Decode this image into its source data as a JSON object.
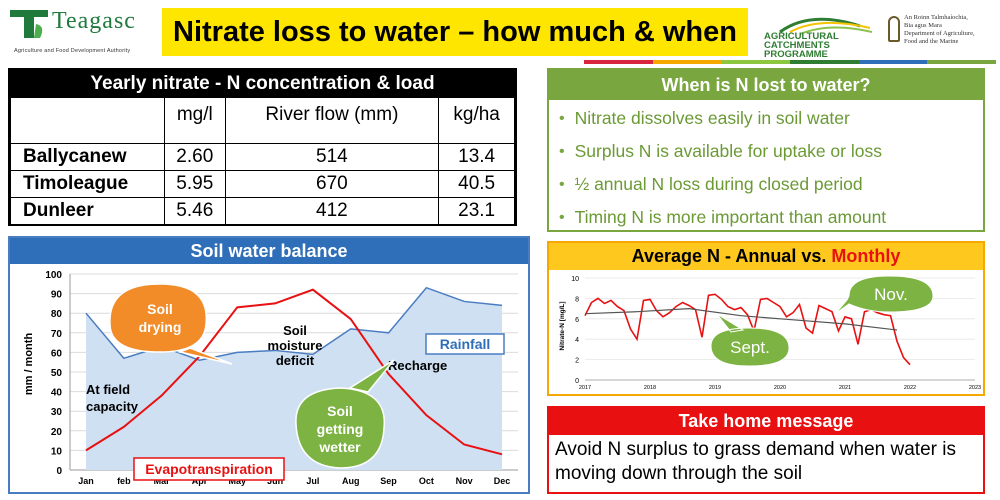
{
  "header": {
    "brand": "Teagasc",
    "brand_tagline": "Agriculture and Food Development Authority",
    "title": "Nitrate loss to water – how much & when",
    "acp_logo": "AGRICULTURAL CATCHMENTS PROGRAMME",
    "dept_logo": [
      "An Roinn Talmhaíochta,",
      "Bia agus Mara",
      "Department of Agriculture,",
      "Food and the Marine"
    ]
  },
  "nitrate_table": {
    "title": "Yearly nitrate - N concentration & load",
    "columns": [
      "",
      "mg/l",
      "River flow (mm)",
      "kg/ha"
    ],
    "rows": [
      [
        "Ballycanew",
        "2.60",
        "514",
        "13.4"
      ],
      [
        "Timoleague",
        "5.95",
        "670",
        "40.5"
      ],
      [
        "Dunleer",
        "5.46",
        "412",
        "23.1"
      ]
    ]
  },
  "when_lost": {
    "title": "When is N lost to water?",
    "bullets": [
      "Nitrate dissolves easily in soil water",
      "Surplus N is available for uptake or loss",
      "½ annual N loss during closed period",
      "Timing N is more important than amount"
    ]
  },
  "soil_water": {
    "title": "Soil water balance",
    "annotations": {
      "soil_drying": "Soil drying",
      "soil_moisture_deficit": "Soil moisture deficit",
      "at_field_capacity": "At field capacity",
      "recharge": "Recharge",
      "soil_getting_wetter": "Soil getting wetter"
    }
  },
  "average_n": {
    "title_prefix": "Average N -  Annual vs.",
    "title_highlight": "Monthly",
    "callout_nov": "Nov.",
    "callout_sept": "Sept."
  },
  "take_home": {
    "title": "Take home message",
    "body": "Avoid N surplus to grass demand when water is moving down through the soil"
  },
  "colors": {
    "title_bar": "#ffe600",
    "green": "#7aa640",
    "blue": "#2f6fba",
    "orange": "#ffc81e",
    "red": "#e81010"
  },
  "chart_data": [
    {
      "type": "line",
      "ylabel": "mm / month",
      "ylim": [
        0,
        100
      ],
      "yticks": [
        "0",
        "10",
        "20",
        "30",
        "40",
        "50",
        "60",
        "70",
        "80",
        "90",
        "100"
      ],
      "categories": [
        "Jan",
        "feb",
        "Mar",
        "Apr",
        "May",
        "Jun",
        "Jul",
        "Aug",
        "Sep",
        "Oct",
        "Nov",
        "Dec"
      ],
      "series": [
        {
          "name": "Rainfall",
          "color": "#4a7cc1",
          "values": [
            80,
            57,
            63,
            56,
            60,
            61,
            59,
            72,
            70,
            93,
            86,
            84
          ]
        },
        {
          "name": "Evapotranspiration",
          "color": "#e81010",
          "values": [
            10,
            22,
            38,
            58,
            83,
            85,
            92,
            77,
            49,
            28,
            13,
            8
          ]
        }
      ],
      "legend": "labels inside plot"
    },
    {
      "type": "line",
      "ylabel": "Nitrate-N [mg/L]",
      "ylim": [
        0,
        10
      ],
      "yticks": [
        "0",
        "2",
        "4",
        "6",
        "8",
        "10"
      ],
      "xticks": [
        "2017",
        "2018",
        "2019",
        "2020",
        "2021",
        "2022",
        "2023"
      ],
      "series": [
        {
          "name": "Monthly",
          "color": "#e81010",
          "x": [
            2017.0,
            2017.1,
            2017.2,
            2017.3,
            2017.4,
            2017.5,
            2017.6,
            2017.7,
            2017.8,
            2017.9,
            2018.0,
            2018.1,
            2018.2,
            2018.3,
            2018.4,
            2018.5,
            2018.6,
            2018.7,
            2018.8,
            2018.9,
            2019.0,
            2019.1,
            2019.2,
            2019.3,
            2019.4,
            2019.5,
            2019.6,
            2019.7,
            2019.8,
            2019.9,
            2020.0,
            2020.1,
            2020.2,
            2020.3,
            2020.4,
            2020.5,
            2020.6,
            2020.7,
            2020.8,
            2020.9,
            2021.0,
            2021.1,
            2021.2,
            2021.3,
            2021.4,
            2021.5,
            2021.6,
            2021.7,
            2021.8,
            2021.9,
            2022.0
          ],
          "values": [
            6.3,
            7.6,
            8.0,
            7.5,
            7.8,
            7.2,
            6.8,
            5.0,
            4.0,
            7.8,
            7.9,
            6.8,
            6.2,
            6.6,
            7.2,
            7.6,
            7.3,
            6.9,
            4.2,
            8.3,
            8.4,
            7.9,
            7.2,
            6.9,
            7.1,
            6.4,
            4.8,
            7.9,
            8.0,
            7.6,
            7.2,
            6.2,
            6.6,
            7.4,
            5.1,
            4.6,
            7.3,
            7.0,
            6.7,
            4.8,
            6.2,
            6.0,
            3.5,
            6.7,
            6.9,
            6.6,
            6.4,
            6.3,
            3.8,
            2.2,
            1.5
          ]
        },
        {
          "name": "Annual",
          "color": "#555555",
          "x": [
            2017.0,
            2017.8,
            2018.6,
            2019.4,
            2020.2,
            2021.0,
            2021.8
          ],
          "values": [
            6.5,
            6.7,
            7.0,
            6.3,
            5.9,
            5.5,
            4.9
          ]
        }
      ]
    }
  ]
}
